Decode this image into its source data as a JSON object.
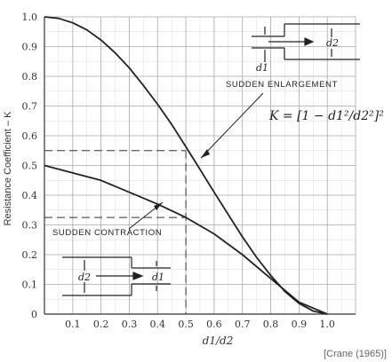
{
  "chart_data": {
    "type": "line",
    "title": "",
    "xlabel": "d1/d2",
    "ylabel": "Resistance Coefficient – K",
    "xlim": [
      0,
      1.1
    ],
    "ylim": [
      0,
      1.0
    ],
    "grid": true,
    "x_ticks": [
      "0.1",
      "0.2",
      "0.3",
      "0.4",
      "0.5",
      "0.6",
      "0.7",
      "0.8",
      "0.9",
      "1.0"
    ],
    "y_ticks": [
      "0",
      "0.1",
      "0.2",
      "0.3",
      "0.4",
      "0.5",
      "0.6",
      "0.7",
      "0.8",
      "0.9",
      "1.0"
    ],
    "series": [
      {
        "name": "SUDDEN ENLARGEMENT",
        "x": [
          0,
          0.05,
          0.1,
          0.15,
          0.2,
          0.25,
          0.3,
          0.35,
          0.4,
          0.45,
          0.5,
          0.55,
          0.6,
          0.65,
          0.7,
          0.75,
          0.8,
          0.85,
          0.9,
          0.95,
          1.0
        ],
        "y": [
          1.0,
          0.995,
          0.98,
          0.956,
          0.922,
          0.879,
          0.828,
          0.769,
          0.706,
          0.638,
          0.563,
          0.487,
          0.41,
          0.335,
          0.26,
          0.191,
          0.13,
          0.076,
          0.036,
          0.01,
          0.0
        ]
      },
      {
        "name": "SUDDEN CONTRACTION",
        "x": [
          0,
          0.1,
          0.2,
          0.3,
          0.4,
          0.5,
          0.6,
          0.7,
          0.8,
          0.9,
          1.0
        ],
        "y": [
          0.5,
          0.475,
          0.45,
          0.41,
          0.37,
          0.325,
          0.27,
          0.2,
          0.12,
          0.04,
          0.0
        ]
      }
    ],
    "reference_lines": [
      {
        "x": 0.5,
        "y": 0.55
      },
      {
        "x": 0.5,
        "y": 0.325
      }
    ],
    "annotations": {
      "enlargement_label": "SUDDEN ENLARGEMENT",
      "contraction_label": "SUDDEN CONTRACTION",
      "formula": "K = [1 − d1²/d2²]²",
      "d1": "d1",
      "d2": "d2"
    }
  },
  "citation": "[Crane (1965)]"
}
